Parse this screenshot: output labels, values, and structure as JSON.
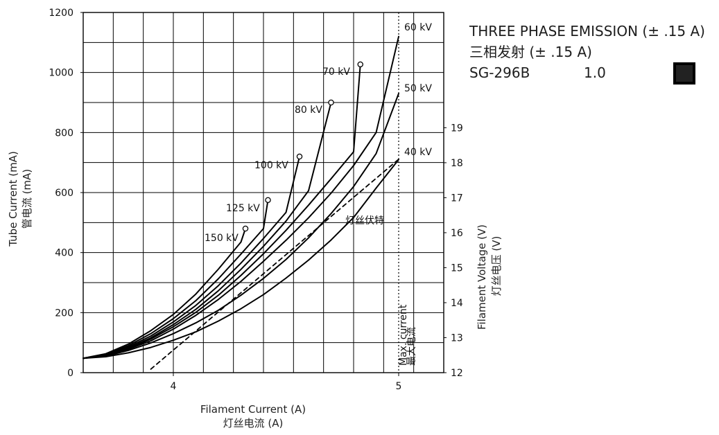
{
  "legend": {
    "title_en": "THREE PHASE EMISSION (± .15 A)",
    "title_zh": "三相发射 (± .15 A)",
    "model": "SG-296B",
    "value": "1.0",
    "swatch_color": "#222222"
  },
  "axes": {
    "x_label_en": "Filament Current (A)",
    "x_label_zh": "灯丝电流 (A)",
    "y_left_label_en": "Tube Current (mA)",
    "y_left_label_zh": "管电流 (mA)",
    "y_right_label_en": "Filament Voltage (V)",
    "y_right_label_zh": "灯丝电压 (V)",
    "x_ticks": [
      "4",
      "5"
    ],
    "y_left_ticks": [
      "0",
      "200",
      "400",
      "600",
      "800",
      "1000",
      "1200"
    ],
    "y_right_ticks": [
      "12",
      "13",
      "14",
      "15",
      "16",
      "17",
      "18",
      "19"
    ]
  },
  "annotations": {
    "max_current_en": "Max. current",
    "max_current_zh": "最大电流",
    "filament_voltage_zh": "灯丝伏特"
  },
  "chart_data": {
    "type": "line",
    "xlim": [
      3.6,
      5.2
    ],
    "ylim": [
      0,
      1200
    ],
    "secondary_ylim": [
      12,
      19
    ],
    "grid": true,
    "x_label": "Filament Current (A)",
    "y_label": "Tube Current (mA)",
    "y2_label": "Filament Voltage (V)",
    "max_current_x": 5.0,
    "series": [
      {
        "name": "150 kV",
        "x": [
          3.6,
          3.7,
          3.8,
          3.9,
          4.0,
          4.1,
          4.2,
          4.3,
          4.32
        ],
        "y": [
          48,
          63,
          95,
          140,
          194,
          262,
          345,
          435,
          480
        ]
      },
      {
        "name": "125 kV",
        "x": [
          3.6,
          3.7,
          3.8,
          3.9,
          4.0,
          4.1,
          4.2,
          4.3,
          4.4,
          4.42
        ],
        "y": [
          48,
          61,
          90,
          130,
          180,
          240,
          313,
          395,
          480,
          575
        ]
      },
      {
        "name": "100 kV",
        "x": [
          3.6,
          3.7,
          3.8,
          3.9,
          4.0,
          4.1,
          4.2,
          4.3,
          4.4,
          4.5,
          4.56
        ],
        "y": [
          48,
          60,
          86,
          122,
          169,
          224,
          290,
          365,
          447,
          534,
          720
        ]
      },
      {
        "name": "80 kV",
        "x": [
          3.6,
          3.7,
          3.8,
          3.9,
          4.0,
          4.1,
          4.2,
          4.3,
          4.4,
          4.5,
          4.6,
          4.7
        ],
        "y": [
          48,
          58,
          82,
          116,
          160,
          211,
          273,
          344,
          421,
          505,
          606,
          900
        ]
      },
      {
        "name": "70 kV",
        "x": [
          3.6,
          3.7,
          3.8,
          3.9,
          4.0,
          4.1,
          4.2,
          4.3,
          4.4,
          4.5,
          4.6,
          4.7,
          4.8,
          4.83
        ],
        "y": [
          48,
          57,
          80,
          112,
          153,
          201,
          258,
          324,
          396,
          474,
          558,
          646,
          736,
          1027
        ]
      },
      {
        "name": "60 kV",
        "x": [
          3.6,
          3.7,
          3.8,
          3.9,
          4.0,
          4.1,
          4.2,
          4.3,
          4.4,
          4.5,
          4.6,
          4.7,
          4.8,
          4.9,
          5.0
        ],
        "y": [
          48,
          56,
          78,
          106,
          145,
          191,
          244,
          304,
          371,
          441,
          516,
          598,
          690,
          800,
          1120
        ]
      },
      {
        "name": "50 kV",
        "x": [
          3.6,
          3.7,
          3.8,
          3.9,
          4.0,
          4.1,
          4.2,
          4.3,
          4.4,
          4.5,
          4.6,
          4.7,
          4.8,
          4.9,
          5.0
        ],
        "y": [
          48,
          55,
          74,
          99,
          130,
          166,
          208,
          258,
          314,
          377,
          449,
          530,
          620,
          730,
          930
        ]
      },
      {
        "name": "40 kV",
        "x": [
          3.6,
          3.7,
          3.8,
          3.9,
          4.0,
          4.1,
          4.2,
          4.3,
          4.4,
          4.5,
          4.6,
          4.7,
          4.8,
          4.9,
          5.0
        ],
        "y": [
          48,
          53,
          66,
          84,
          108,
          136,
          172,
          213,
          260,
          315,
          375,
          442,
          517,
          615,
          710
        ]
      },
      {
        "name": "Filament Voltage",
        "axis": "secondary",
        "x": [
          3.9,
          5.0
        ],
        "y": [
          12.1,
          18.1
        ]
      }
    ]
  }
}
